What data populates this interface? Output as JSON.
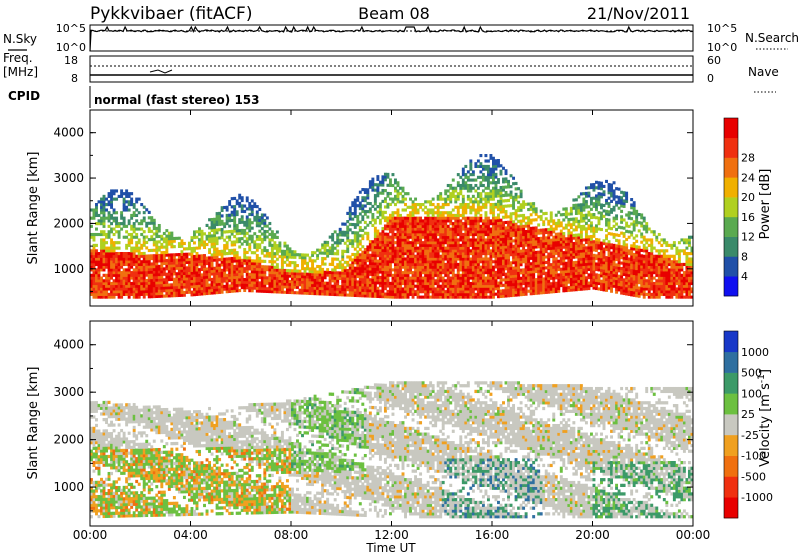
{
  "header": {
    "station": "Pykkvibaer (fitACF)",
    "beam": "Beam 08",
    "date": "21/Nov/2011"
  },
  "summary_panels": {
    "nsky_label": "N.Sky",
    "nsky_ticks": [
      "10^5",
      "10^0"
    ],
    "nsearch_label": "N.Search",
    "nsearch_ticks": [
      "10^5",
      "10^0"
    ],
    "freq_label_1": "Freq.",
    "freq_label_2": "[MHz]",
    "freq_ticks": [
      "18",
      "8"
    ],
    "nave_label": "Nave",
    "nave_ticks": [
      "60",
      "0"
    ],
    "cpid_label": "CPID",
    "cpid_text": "normal (fast stereo) 153"
  },
  "axes": {
    "xlabel": "Time UT",
    "ylabel": "Slant Range [km]",
    "x_ticks": [
      "00:00",
      "04:00",
      "08:00",
      "12:00",
      "16:00",
      "20:00",
      "00:00"
    ],
    "y_ticks": [
      "1000",
      "2000",
      "3000",
      "4000"
    ]
  },
  "power_scale": {
    "label": "Power [dB]",
    "ticks": [
      "4",
      "8",
      "12",
      "16",
      "20",
      "24",
      "28"
    ],
    "colors": [
      "#1010f0",
      "#2050a8",
      "#3a8a6a",
      "#5aaa50",
      "#b0d020",
      "#f0b000",
      "#f07010",
      "#f03010",
      "#e80000"
    ]
  },
  "velocity_scale": {
    "label": "Velocity [m s",
    "label_sup": "-1",
    "label_end": "]",
    "ticks": [
      "1000",
      "500",
      "100",
      "25",
      "-25",
      "-100",
      "-500",
      "-1000"
    ],
    "colors": [
      "#1838c8",
      "#2f6fa0",
      "#3c9a68",
      "#6cc040",
      "#c8c8c0",
      "#f0a020",
      "#f07010",
      "#f03010",
      "#e80000"
    ]
  },
  "chart_data": [
    {
      "type": "heatmap",
      "title": "Power",
      "x_range": [
        "00:00",
        "24:00"
      ],
      "ylim": [
        180,
        4500
      ],
      "colorbar_range": [
        0,
        30
      ],
      "bands": [
        {
          "time": 0,
          "low": 350,
          "high": 1400
        },
        {
          "time": 2,
          "low": 350,
          "high": 1300
        },
        {
          "time": 4,
          "low": 400,
          "high": 1300
        },
        {
          "time": 6,
          "low": 500,
          "high": 1200
        },
        {
          "time": 8,
          "low": 450,
          "high": 900
        },
        {
          "time": 10,
          "low": 400,
          "high": 900
        },
        {
          "time": 12,
          "low": 350,
          "high": 2100
        },
        {
          "time": 16,
          "low": 350,
          "high": 2100
        },
        {
          "time": 20,
          "low": 550,
          "high": 1600
        },
        {
          "time": 22,
          "low": 350,
          "high": 1400
        },
        {
          "time": 24,
          "low": 350,
          "high": 1000
        }
      ]
    },
    {
      "type": "heatmap",
      "title": "Velocity",
      "x_range": [
        "00:00",
        "24:00"
      ],
      "ylim": [
        180,
        4500
      ],
      "colorbar_range": [
        -1000,
        1000
      ],
      "bands": [
        {
          "time": 0,
          "low": 350,
          "high": 2800
        },
        {
          "time": 4,
          "low": 400,
          "high": 2600
        },
        {
          "time": 8,
          "low": 450,
          "high": 2800
        },
        {
          "time": 12,
          "low": 350,
          "high": 3200
        },
        {
          "time": 16,
          "low": 350,
          "high": 3200
        },
        {
          "time": 20,
          "low": 350,
          "high": 3100
        },
        {
          "time": 24,
          "low": 350,
          "high": 3100
        }
      ]
    }
  ]
}
